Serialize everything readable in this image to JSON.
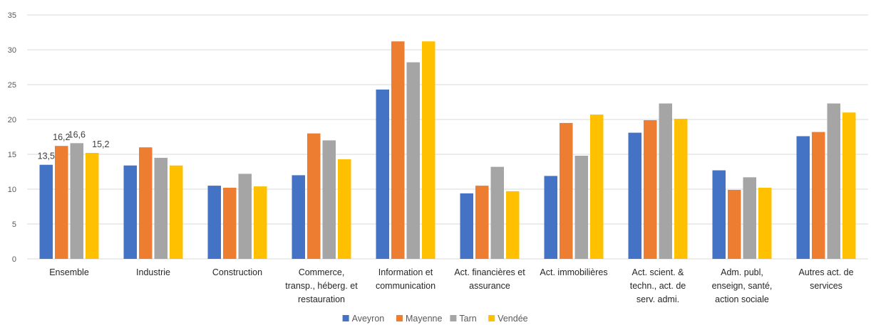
{
  "chart_data": {
    "type": "bar",
    "title": "",
    "xlabel": "",
    "ylabel": "",
    "ylim": [
      0,
      35
    ],
    "yticks": [
      0,
      5,
      10,
      15,
      20,
      25,
      30,
      35
    ],
    "grid": true,
    "legend_position": "bottom",
    "categories": [
      [
        "Ensemble"
      ],
      [
        "Industrie"
      ],
      [
        "Construction"
      ],
      [
        "Commerce,",
        "transp., héberg. et",
        "restauration"
      ],
      [
        "Information et",
        "communication"
      ],
      [
        "Act. financières et",
        "assurance"
      ],
      [
        "Act. immobilières"
      ],
      [
        "Act. scient. &",
        "techn., act. de",
        "serv. admi."
      ],
      [
        "Adm. publ,",
        "enseign, santé,",
        "action sociale"
      ],
      [
        "Autres act. de",
        "services"
      ]
    ],
    "series": [
      {
        "name": "Aveyron",
        "color": "#4472c4",
        "values": [
          13.5,
          13.4,
          10.5,
          12.0,
          24.3,
          9.4,
          11.9,
          18.1,
          12.7,
          17.6
        ]
      },
      {
        "name": "Mayenne",
        "color": "#ed7d31",
        "values": [
          16.2,
          16.0,
          10.2,
          18.0,
          31.2,
          10.5,
          19.5,
          19.9,
          9.9,
          18.2
        ]
      },
      {
        "name": "Tarn",
        "color": "#a5a5a5",
        "values": [
          16.6,
          14.5,
          12.2,
          17.0,
          28.2,
          13.2,
          14.8,
          22.3,
          11.7,
          22.3
        ]
      },
      {
        "name": "Vendée",
        "color": "#ffc000",
        "values": [
          15.2,
          13.4,
          10.4,
          14.3,
          31.2,
          9.7,
          20.7,
          20.1,
          10.2,
          21.0
        ]
      }
    ],
    "data_labels": {
      "category_index": 0,
      "texts": [
        "13,5",
        "16,2",
        "16,6",
        "15,2"
      ]
    }
  }
}
